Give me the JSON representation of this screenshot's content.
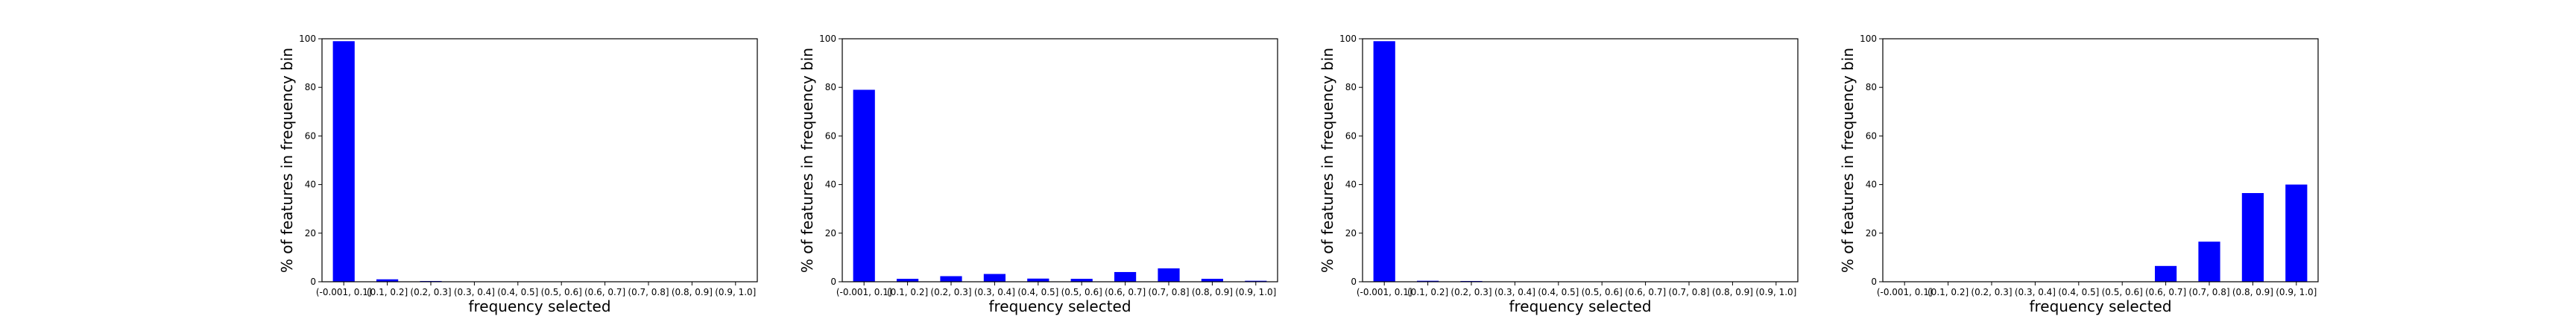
{
  "figure": {
    "background": "#ffffff",
    "bar_color": "#0000ff"
  },
  "chart_data": [
    {
      "type": "bar",
      "categories": [
        "(-0.001, 0.1]",
        "(0.1, 0.2]",
        "(0.2, 0.3]",
        "(0.3, 0.4]",
        "(0.4, 0.5]",
        "(0.5, 0.6]",
        "(0.6, 0.7]",
        "(0.7, 0.8]",
        "(0.8, 0.9]",
        "(0.9, 1.0]"
      ],
      "values": [
        99,
        1,
        0.3,
        0,
        0,
        0,
        0,
        0,
        0,
        0
      ],
      "title": "",
      "xlabel": "frequency selected",
      "ylabel": "% of features in frequency bin",
      "ylim": [
        0,
        100
      ],
      "yticks": [
        0,
        20,
        40,
        60,
        80,
        100
      ],
      "grid": false,
      "legend": "none"
    },
    {
      "type": "bar",
      "categories": [
        "(-0.001, 0.1]",
        "(0.1, 0.2]",
        "(0.2, 0.3]",
        "(0.3, 0.4]",
        "(0.4, 0.5]",
        "(0.5, 0.6]",
        "(0.6, 0.7]",
        "(0.7, 0.8]",
        "(0.8, 0.9]",
        "(0.9, 1.0]"
      ],
      "values": [
        79,
        1.2,
        2.3,
        3.2,
        1.3,
        1.2,
        4,
        5.5,
        1.2,
        0.4
      ],
      "title": "",
      "xlabel": "frequency selected",
      "ylabel": "% of features in frequency bin",
      "ylim": [
        0,
        100
      ],
      "yticks": [
        0,
        20,
        40,
        60,
        80,
        100
      ],
      "grid": false,
      "legend": "none"
    },
    {
      "type": "bar",
      "categories": [
        "(-0.001, 0.1]",
        "(0.1, 0.2]",
        "(0.2, 0.3]",
        "(0.3, 0.4]",
        "(0.4, 0.5]",
        "(0.5, 0.6]",
        "(0.6, 0.7]",
        "(0.7, 0.8]",
        "(0.8, 0.9]",
        "(0.9, 1.0]"
      ],
      "values": [
        99,
        0.4,
        0.3,
        0,
        0,
        0,
        0,
        0,
        0,
        0
      ],
      "title": "",
      "xlabel": "frequency selected",
      "ylabel": "% of features in frequency bin",
      "ylim": [
        0,
        100
      ],
      "yticks": [
        0,
        20,
        40,
        60,
        80,
        100
      ],
      "grid": false,
      "legend": "none"
    },
    {
      "type": "bar",
      "categories": [
        "(-0.001, 0.1]",
        "(0.1, 0.2]",
        "(0.2, 0.3]",
        "(0.3, 0.4]",
        "(0.4, 0.5]",
        "(0.5, 0.6]",
        "(0.6, 0.7]",
        "(0.7, 0.8]",
        "(0.8, 0.9]",
        "(0.9, 1.0]"
      ],
      "values": [
        0,
        0,
        0,
        0,
        0,
        0,
        6.5,
        16.5,
        36.5,
        40
      ],
      "title": "",
      "xlabel": "frequency selected",
      "ylabel": "% of features in frequency bin",
      "ylim": [
        0,
        100
      ],
      "yticks": [
        0,
        20,
        40,
        60,
        80,
        100
      ],
      "grid": false,
      "legend": "none"
    }
  ]
}
